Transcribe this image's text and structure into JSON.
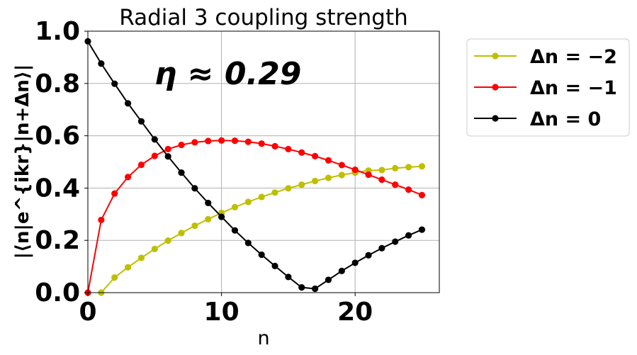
{
  "chart_data": {
    "type": "line",
    "title": "Radial 3 coupling strength",
    "xlabel": "n",
    "ylabel": "|⟨n|e^{ikr}|n+Δn⟩|",
    "xlim": [
      0,
      26.3
    ],
    "ylim": [
      0,
      1.0
    ],
    "xticks": [
      0,
      10,
      20
    ],
    "xtick_labels": [
      "0",
      "10",
      "20"
    ],
    "yticks": [
      0,
      0.2,
      0.4,
      0.6,
      0.8,
      1.0
    ],
    "ytick_labels": [
      "0.0",
      "0.2",
      "0.4",
      "0.6",
      "0.8",
      "1.0"
    ],
    "grid": true,
    "legend_position": "outside-right",
    "annotation": "η ≈ 0.29",
    "x": [
      0,
      1,
      2,
      3,
      4,
      5,
      6,
      7,
      8,
      9,
      10,
      11,
      12,
      13,
      14,
      15,
      16,
      17,
      18,
      19,
      20,
      21,
      22,
      23,
      24,
      25
    ],
    "series": [
      {
        "name": "Δn = −2",
        "color": "#bfbf00",
        "values": [
          null,
          0.0,
          0.058,
          0.097,
          0.133,
          0.167,
          0.199,
          0.228,
          0.256,
          0.281,
          0.305,
          0.327,
          0.347,
          0.366,
          0.383,
          0.399,
          0.413,
          0.427,
          0.439,
          0.45,
          0.459,
          0.467,
          0.469,
          0.476,
          0.48,
          0.483
        ]
      },
      {
        "name": "Δn = −1",
        "color": "#ff0000",
        "values": [
          0.0,
          0.278,
          0.379,
          0.442,
          0.489,
          0.523,
          0.549,
          0.565,
          0.575,
          0.58,
          0.582,
          0.581,
          0.577,
          0.57,
          0.56,
          0.549,
          0.536,
          0.522,
          0.506,
          0.488,
          0.47,
          0.451,
          0.432,
          0.413,
          0.394,
          0.373
        ]
      },
      {
        "name": "Δn = 0",
        "color": "#000000",
        "values": [
          0.961,
          0.876,
          0.799,
          0.724,
          0.655,
          0.586,
          0.521,
          0.459,
          0.399,
          0.343,
          0.29,
          0.238,
          0.19,
          0.145,
          0.102,
          0.06,
          0.02,
          0.015,
          0.049,
          0.083,
          0.114,
          0.143,
          0.17,
          0.195,
          0.219,
          0.241
        ]
      }
    ]
  }
}
